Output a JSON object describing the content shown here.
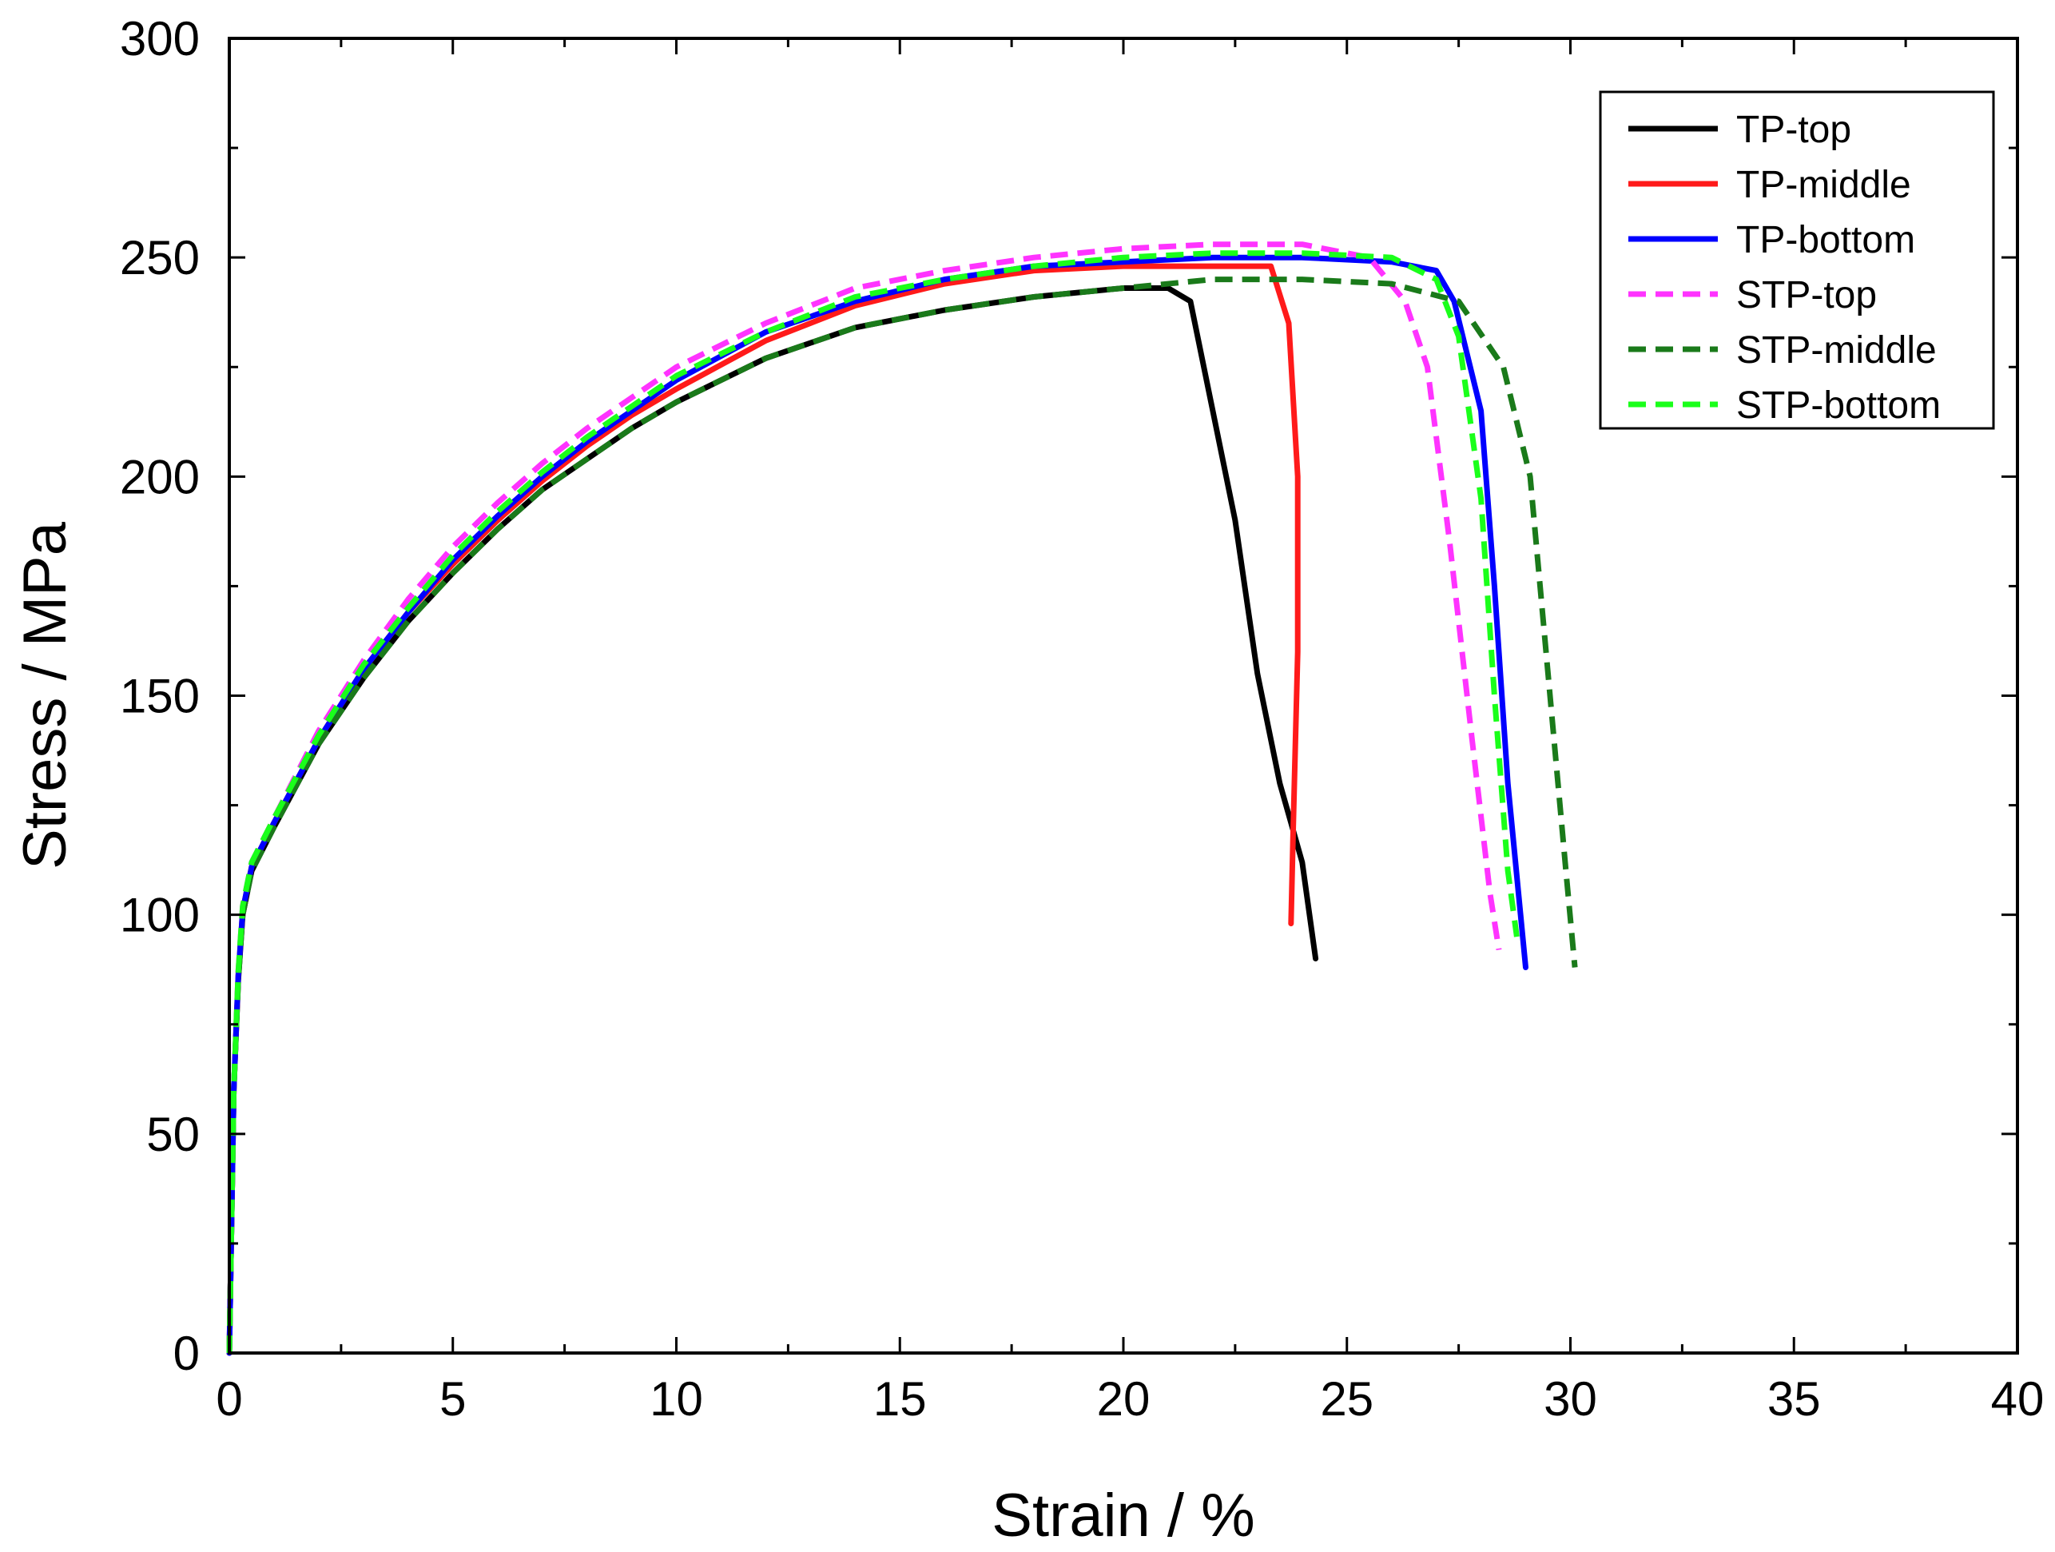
{
  "chart_data": {
    "type": "line",
    "xlabel": "Strain / %",
    "ylabel": "Stress / MPa",
    "xlim": [
      0,
      40
    ],
    "ylim": [
      0,
      300
    ],
    "xticks": [
      0,
      5,
      10,
      15,
      20,
      25,
      30,
      35,
      40
    ],
    "yticks": [
      0,
      50,
      100,
      150,
      200,
      250,
      300
    ],
    "grid": false,
    "legend_position": "top-right",
    "series": [
      {
        "name": "TP-top",
        "color": "#000000",
        "dash": "solid",
        "x": [
          0,
          0.1,
          0.2,
          0.3,
          0.5,
          1,
          2,
          3,
          4,
          5,
          6,
          7,
          8,
          9,
          10,
          12,
          14,
          16,
          18,
          20,
          21,
          21.5,
          22,
          22.5,
          23,
          23.5,
          24,
          24.3
        ],
        "y": [
          0,
          60,
          85,
          100,
          110,
          120,
          139,
          154,
          167,
          178,
          188,
          197,
          204,
          211,
          217,
          227,
          234,
          238,
          241,
          243,
          243,
          240,
          215,
          190,
          155,
          130,
          112,
          90
        ]
      },
      {
        "name": "TP-middle",
        "color": "#ff1a1a",
        "dash": "solid",
        "x": [
          0,
          0.1,
          0.2,
          0.3,
          0.5,
          1,
          2,
          3,
          4,
          5,
          6,
          7,
          8,
          9,
          10,
          12,
          14,
          16,
          18,
          20,
          22,
          23.3,
          23.7,
          23.9,
          23.9,
          23.8,
          23.75
        ],
        "y": [
          0,
          60,
          86,
          101,
          111,
          121,
          140,
          156,
          169,
          180,
          190,
          199,
          207,
          214,
          220,
          231,
          239,
          244,
          247,
          248,
          248,
          248,
          235,
          200,
          160,
          120,
          98
        ]
      },
      {
        "name": "TP-bottom",
        "color": "#0000ff",
        "dash": "solid",
        "x": [
          0,
          0.1,
          0.2,
          0.3,
          0.5,
          1,
          2,
          3,
          4,
          5,
          6,
          7,
          8,
          9,
          10,
          12,
          14,
          16,
          18,
          20,
          22,
          24,
          26,
          27,
          27.4,
          28,
          28.3,
          28.6,
          29
        ],
        "y": [
          0,
          60,
          86,
          101,
          111,
          121,
          140,
          156,
          169,
          181,
          191,
          200,
          208,
          215,
          222,
          233,
          240,
          245,
          248,
          249,
          250,
          250,
          249,
          247,
          240,
          215,
          175,
          130,
          88
        ]
      },
      {
        "name": "STP-top",
        "color": "#ff33ff",
        "dash": "dashed",
        "x": [
          0,
          0.1,
          0.2,
          0.3,
          0.5,
          1,
          2,
          3,
          4,
          5,
          6,
          7,
          8,
          9,
          10,
          12,
          14,
          16,
          18,
          20,
          22,
          24,
          25.5,
          26.3,
          26.8,
          27.3,
          27.8,
          28.2,
          28.4
        ],
        "y": [
          0,
          60,
          87,
          102,
          112,
          122,
          142,
          158,
          172,
          184,
          194,
          203,
          211,
          218,
          225,
          235,
          243,
          247,
          250,
          252,
          253,
          253,
          250,
          240,
          225,
          185,
          140,
          105,
          92
        ]
      },
      {
        "name": "STP-middle",
        "color": "#1a7a1a",
        "dash": "dashed",
        "x": [
          0,
          0.1,
          0.2,
          0.3,
          0.5,
          1,
          2,
          3,
          4,
          5,
          6,
          7,
          8,
          9,
          10,
          12,
          14,
          16,
          18,
          20,
          22,
          24,
          26,
          27.5,
          28.5,
          29.1,
          29.5,
          29.9,
          30.1
        ],
        "y": [
          0,
          60,
          85,
          100,
          110,
          120,
          139,
          154,
          167,
          178,
          188,
          197,
          204,
          211,
          217,
          227,
          234,
          238,
          241,
          243,
          245,
          245,
          244,
          240,
          225,
          200,
          155,
          110,
          88
        ]
      },
      {
        "name": "STP-bottom",
        "color": "#1aff1a",
        "dash": "dashed",
        "x": [
          0,
          0.1,
          0.2,
          0.3,
          0.5,
          1,
          2,
          3,
          4,
          5,
          6,
          7,
          8,
          9,
          10,
          12,
          14,
          16,
          18,
          20,
          22,
          24,
          26,
          27,
          27.5,
          28,
          28.3,
          28.6,
          28.8
        ],
        "y": [
          0,
          60,
          87,
          102,
          112,
          122,
          141,
          157,
          170,
          182,
          192,
          201,
          209,
          216,
          223,
          233,
          241,
          245,
          248,
          250,
          251,
          251,
          250,
          245,
          232,
          195,
          150,
          110,
          95
        ]
      }
    ]
  }
}
